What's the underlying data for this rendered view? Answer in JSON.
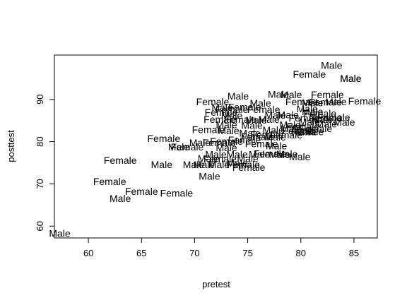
{
  "chart_data": {
    "type": "scatter",
    "title": "",
    "xlabel": "pretest",
    "ylabel": "posttest",
    "xlim": [
      56.8,
      87.2
    ],
    "ylim": [
      57.2,
      100.5
    ],
    "x_ticks": [
      60,
      65,
      70,
      75,
      80,
      85
    ],
    "y_ticks": [
      60,
      70,
      80,
      90
    ],
    "grid": false,
    "legend": "none",
    "marker": "text",
    "points": [
      {
        "x": 57.3,
        "y": 58.3,
        "label": "Male"
      },
      {
        "x": 62.0,
        "y": 70.6,
        "label": "Female"
      },
      {
        "x": 63.0,
        "y": 66.6,
        "label": "Male"
      },
      {
        "x": 63.0,
        "y": 75.6,
        "label": "Female"
      },
      {
        "x": 65.0,
        "y": 68.2,
        "label": "Female"
      },
      {
        "x": 66.9,
        "y": 74.6,
        "label": "Male"
      },
      {
        "x": 67.1,
        "y": 80.8,
        "label": "Female"
      },
      {
        "x": 68.3,
        "y": 67.8,
        "label": "Female"
      },
      {
        "x": 68.5,
        "y": 78.8,
        "label": "Male"
      },
      {
        "x": 69.3,
        "y": 78.8,
        "label": "Female"
      },
      {
        "x": 69.9,
        "y": 74.6,
        "label": "Male"
      },
      {
        "x": 70.5,
        "y": 79.8,
        "label": "Male"
      },
      {
        "x": 70.9,
        "y": 74.6,
        "label": "Male"
      },
      {
        "x": 71.3,
        "y": 76.0,
        "label": "Male"
      },
      {
        "x": 71.7,
        "y": 89.5,
        "label": "Female"
      },
      {
        "x": 71.3,
        "y": 82.9,
        "label": "Female"
      },
      {
        "x": 71.4,
        "y": 71.8,
        "label": "Male"
      },
      {
        "x": 72.0,
        "y": 77.0,
        "label": "Male"
      },
      {
        "x": 72.3,
        "y": 79.8,
        "label": "Female"
      },
      {
        "x": 72.3,
        "y": 74.6,
        "label": "Male"
      },
      {
        "x": 72.4,
        "y": 75.9,
        "label": "Female"
      },
      {
        "x": 72.4,
        "y": 85.3,
        "label": "Female"
      },
      {
        "x": 72.5,
        "y": 87.0,
        "label": "Female"
      },
      {
        "x": 72.6,
        "y": 88.1,
        "label": "Male"
      },
      {
        "x": 73.0,
        "y": 84.0,
        "label": "Male"
      },
      {
        "x": 73.0,
        "y": 78.6,
        "label": "Male"
      },
      {
        "x": 73.0,
        "y": 80.1,
        "label": "Female"
      },
      {
        "x": 73.2,
        "y": 82.6,
        "label": "Male"
      },
      {
        "x": 73.5,
        "y": 86.2,
        "label": "Male"
      },
      {
        "x": 73.5,
        "y": 87.6,
        "label": "Female"
      },
      {
        "x": 74.0,
        "y": 77.0,
        "label": "Male"
      },
      {
        "x": 74.0,
        "y": 74.9,
        "label": "Male"
      },
      {
        "x": 74.1,
        "y": 90.8,
        "label": "Male"
      },
      {
        "x": 74.3,
        "y": 85.3,
        "label": "Female"
      },
      {
        "x": 74.6,
        "y": 74.6,
        "label": "Female"
      },
      {
        "x": 74.7,
        "y": 80.4,
        "label": "Female"
      },
      {
        "x": 74.7,
        "y": 88.2,
        "label": "Female"
      },
      {
        "x": 75.0,
        "y": 76.0,
        "label": "Male"
      },
      {
        "x": 75.1,
        "y": 73.9,
        "label": "Female"
      },
      {
        "x": 75.2,
        "y": 82.0,
        "label": "Male"
      },
      {
        "x": 75.4,
        "y": 83.9,
        "label": "Male"
      },
      {
        "x": 75.8,
        "y": 85.1,
        "label": "Male"
      },
      {
        "x": 75.9,
        "y": 81.2,
        "label": "Female"
      },
      {
        "x": 76.1,
        "y": 77.0,
        "label": "Male"
      },
      {
        "x": 76.2,
        "y": 89.1,
        "label": "Male"
      },
      {
        "x": 76.3,
        "y": 79.5,
        "label": "Female"
      },
      {
        "x": 76.5,
        "y": 87.6,
        "label": "Female"
      },
      {
        "x": 76.8,
        "y": 81.7,
        "label": "Female"
      },
      {
        "x": 77.0,
        "y": 85.3,
        "label": "Male"
      },
      {
        "x": 77.1,
        "y": 77.2,
        "label": "Female"
      },
      {
        "x": 77.4,
        "y": 82.8,
        "label": "Male"
      },
      {
        "x": 77.6,
        "y": 81.1,
        "label": "Male"
      },
      {
        "x": 77.6,
        "y": 86.3,
        "label": "Male"
      },
      {
        "x": 77.7,
        "y": 79.0,
        "label": "Male"
      },
      {
        "x": 77.9,
        "y": 91.2,
        "label": "Male"
      },
      {
        "x": 78.0,
        "y": 76.9,
        "label": "Male"
      },
      {
        "x": 78.6,
        "y": 81.6,
        "label": "Female"
      },
      {
        "x": 78.7,
        "y": 77.1,
        "label": "Male"
      },
      {
        "x": 78.8,
        "y": 86.4,
        "label": "Male"
      },
      {
        "x": 79.0,
        "y": 84.0,
        "label": "Male"
      },
      {
        "x": 79.1,
        "y": 91.1,
        "label": "Male"
      },
      {
        "x": 79.1,
        "y": 83.1,
        "label": "Male"
      },
      {
        "x": 79.8,
        "y": 82.6,
        "label": "Female"
      },
      {
        "x": 79.9,
        "y": 76.4,
        "label": "Male"
      },
      {
        "x": 80.1,
        "y": 89.5,
        "label": "Female"
      },
      {
        "x": 80.2,
        "y": 83.6,
        "label": "Female"
      },
      {
        "x": 80.4,
        "y": 85.6,
        "label": "Female"
      },
      {
        "x": 80.5,
        "y": 82.4,
        "label": "Male"
      },
      {
        "x": 80.6,
        "y": 87.8,
        "label": "Male"
      },
      {
        "x": 80.6,
        "y": 82.4,
        "label": "Female"
      },
      {
        "x": 80.8,
        "y": 84.7,
        "label": "Male"
      },
      {
        "x": 80.8,
        "y": 96.0,
        "label": "Female"
      },
      {
        "x": 81.1,
        "y": 89.2,
        "label": "Male"
      },
      {
        "x": 81.1,
        "y": 87.1,
        "label": "Male"
      },
      {
        "x": 81.4,
        "y": 83.1,
        "label": "Female"
      },
      {
        "x": 81.8,
        "y": 86.7,
        "label": "Female"
      },
      {
        "x": 82.0,
        "y": 85.3,
        "label": "Male"
      },
      {
        "x": 82.3,
        "y": 85.6,
        "label": "Female"
      },
      {
        "x": 82.3,
        "y": 89.4,
        "label": "Female"
      },
      {
        "x": 82.4,
        "y": 84.2,
        "label": "Male"
      },
      {
        "x": 82.5,
        "y": 91.1,
        "label": "Female"
      },
      {
        "x": 82.9,
        "y": 98.1,
        "label": "Male"
      },
      {
        "x": 83.1,
        "y": 85.8,
        "label": "Female"
      },
      {
        "x": 83.3,
        "y": 89.5,
        "label": "Male"
      },
      {
        "x": 84.1,
        "y": 84.6,
        "label": "Male"
      },
      {
        "x": 84.7,
        "y": 95.0,
        "label": "Male"
      },
      {
        "x": 84.7,
        "y": 95.0,
        "label": "Male"
      },
      {
        "x": 86.0,
        "y": 89.6,
        "label": "Female"
      }
    ]
  }
}
